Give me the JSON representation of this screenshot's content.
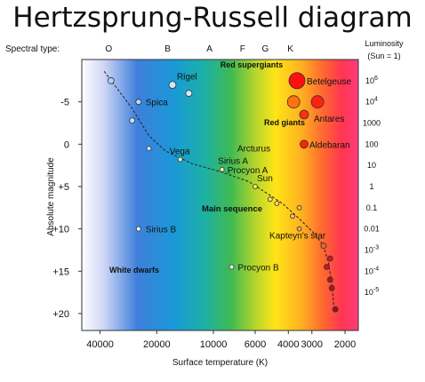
{
  "title": "Hertzsprung-Russell diagram",
  "spectral_label": "Spectral type:",
  "spectral_types": [
    "O",
    "B",
    "A",
    "F",
    "G",
    "K"
  ],
  "luminosity_header": [
    "Luminosity",
    "(Sun = 1)"
  ],
  "luminosity_ticks": [
    {
      "base": "10",
      "exp": "6",
      "mag": -7.5
    },
    {
      "base": "10",
      "exp": "4",
      "mag": -5
    },
    {
      "base": "1000",
      "exp": "",
      "mag": -2.5
    },
    {
      "base": "100",
      "exp": "",
      "mag": 0
    },
    {
      "base": "10",
      "exp": "",
      "mag": 2.5
    },
    {
      "base": "1",
      "exp": "",
      "mag": 5
    },
    {
      "base": "0.1",
      "exp": "",
      "mag": 7.5
    },
    {
      "base": "0.01",
      "exp": "",
      "mag": 10
    },
    {
      "base": "10",
      "exp": "-3",
      "mag": 12.5
    },
    {
      "base": "10",
      "exp": "-4",
      "mag": 15
    },
    {
      "base": "10",
      "exp": "-5",
      "mag": 17.5
    }
  ],
  "xlabel": "Surface temperature (K)",
  "ylabel": "Absolute magnitude",
  "x_ticks": [
    "40000",
    "20000",
    "10000",
    "6000",
    "4000",
    "3000",
    "2000"
  ],
  "y_ticks": [
    "-5",
    "0",
    "+5",
    "+10",
    "+15",
    "+20"
  ],
  "regions": {
    "supergiants": "Red supergiants",
    "giants": "Red giants",
    "main_sequence": "Main sequence",
    "white_dwarfs": "White dwarfs"
  },
  "stars": [
    {
      "name": "",
      "temp": 35000,
      "mag": -7.5,
      "size": 3.5,
      "color": "#a9d3f5"
    },
    {
      "name": "Spica",
      "temp": 25000,
      "mag": -5.0,
      "size": 3,
      "color": "#b9dcf7"
    },
    {
      "name": "Rigel",
      "temp": 16500,
      "mag": -7.0,
      "size": 4,
      "color": "#cce6fa"
    },
    {
      "name": "",
      "temp": 13500,
      "mag": -6.0,
      "size": 3.5,
      "color": "#d6ecfb"
    },
    {
      "name": "",
      "temp": 27000,
      "mag": -2.8,
      "size": 3,
      "color": "#c4e1f8"
    },
    {
      "name": "",
      "temp": 22000,
      "mag": 0.5,
      "size": 2.5,
      "color": "#d6ecfb"
    },
    {
      "name": "Vega",
      "temp": 15000,
      "mag": 1.8,
      "size": 2.5,
      "color": "#e6f4c8"
    },
    {
      "name": "Sirius A",
      "temp": 11500,
      "mag": 1.5,
      "size": 0,
      "color": "#ffffff"
    },
    {
      "name": "Procyon A",
      "temp": 9000,
      "mag": 3.0,
      "size": 2.5,
      "color": "#f5f0a0"
    },
    {
      "name": "Sun",
      "temp": 6000,
      "mag": 5.0,
      "size": 2.5,
      "color": "#f7ea60"
    },
    {
      "name": "",
      "temp": 5000,
      "mag": 6.5,
      "size": 2.5,
      "color": "#f5e27a"
    },
    {
      "name": "",
      "temp": 4600,
      "mag": 7.0,
      "size": 2.5,
      "color": "#f5d77a"
    },
    {
      "name": "",
      "temp": 3800,
      "mag": 8.5,
      "size": 2.5,
      "color": "#f7c05a"
    },
    {
      "name": "",
      "temp": 3500,
      "mag": 7.5,
      "size": 2.5,
      "color": "#f7c05a"
    },
    {
      "name": "Kapteyn's star",
      "temp": 3500,
      "mag": 10.0,
      "size": 2.5,
      "color": "#f5a15a"
    },
    {
      "name": "",
      "temp": 2600,
      "mag": 12.0,
      "size": 3,
      "color": "#e86a2a"
    },
    {
      "name": "",
      "temp": 2400,
      "mag": 13.5,
      "size": 3,
      "color": "#c81a1a"
    },
    {
      "name": "",
      "temp": 2500,
      "mag": 14.5,
      "size": 3,
      "color": "#c81a1a"
    },
    {
      "name": "",
      "temp": 2400,
      "mag": 16.0,
      "size": 3,
      "color": "#b81414"
    },
    {
      "name": "",
      "temp": 2350,
      "mag": 17.0,
      "size": 3,
      "color": "#b81414"
    },
    {
      "name": "",
      "temp": 2250,
      "mag": 19.5,
      "size": 3,
      "color": "#a01010"
    },
    {
      "name": "Sirius B",
      "temp": 25000,
      "mag": 10.0,
      "size": 2.5,
      "color": "#ffffff"
    },
    {
      "name": "Procyon B",
      "temp": 8000,
      "mag": 14.5,
      "size": 2.5,
      "color": "#ffffff"
    },
    {
      "name": "Betelgeuse",
      "temp": 3600,
      "mag": -7.5,
      "size": 9,
      "color": "#ff1010"
    },
    {
      "name": "",
      "temp": 3750,
      "mag": -5.0,
      "size": 7,
      "color": "#ff7010"
    },
    {
      "name": "",
      "temp": 2800,
      "mag": -5.0,
      "size": 7,
      "color": "#ff2010"
    },
    {
      "name": "Antares",
      "temp": 3300,
      "mag": -3.5,
      "size": 5,
      "color": "#ff3010"
    },
    {
      "name": "Arcturus",
      "temp": 4500,
      "mag": 0.0,
      "size": 0,
      "color": "#ffffff"
    },
    {
      "name": "Aldebaran",
      "temp": 3300,
      "mag": 0.0,
      "size": 4.5,
      "color": "#ff2010"
    }
  ],
  "chart_data": {
    "type": "scatter",
    "title": "Hertzsprung-Russell diagram",
    "xlabel": "Surface temperature (K)",
    "ylabel": "Absolute magnitude",
    "x_scale": "log, reversed",
    "xlim": [
      50000,
      1700
    ],
    "ylim": [
      -10,
      22
    ],
    "named_points": [
      {
        "name": "Rigel",
        "x": 16500,
        "y": -7.0
      },
      {
        "name": "Spica",
        "x": 25000,
        "y": -5.0
      },
      {
        "name": "Betelgeuse",
        "x": 3600,
        "y": -7.5
      },
      {
        "name": "Antares",
        "x": 3300,
        "y": -3.5
      },
      {
        "name": "Aldebaran",
        "x": 3300,
        "y": 0.0
      },
      {
        "name": "Arcturus",
        "x": 4500,
        "y": 0.0
      },
      {
        "name": "Vega",
        "x": 15000,
        "y": 1.8
      },
      {
        "name": "Sirius A",
        "x": 11500,
        "y": 1.5
      },
      {
        "name": "Procyon A",
        "x": 9000,
        "y": 3.0
      },
      {
        "name": "Sun",
        "x": 6000,
        "y": 5.0
      },
      {
        "name": "Kapteyn's star",
        "x": 3500,
        "y": 10.0
      },
      {
        "name": "Sirius B",
        "x": 25000,
        "y": 10.0
      },
      {
        "name": "Procyon B",
        "x": 8000,
        "y": 14.5
      }
    ]
  }
}
